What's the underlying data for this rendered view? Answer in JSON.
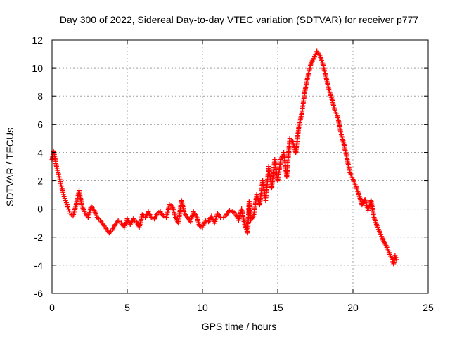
{
  "chart_data": {
    "type": "scatter",
    "title": "Day 300 of 2022, Sidereal Day-to-day VTEC variation (SDTVAR) for receiver p777",
    "xlabel": "GPS time / hours",
    "ylabel": "SDTVAR / TECUs",
    "xlim": [
      0,
      25
    ],
    "ylim": [
      -6,
      12
    ],
    "xticks": [
      0,
      5,
      10,
      15,
      20,
      25
    ],
    "yticks": [
      -6,
      -4,
      -2,
      0,
      2,
      4,
      6,
      8,
      10,
      12
    ],
    "x_tick_labels": [
      "0",
      "5",
      "10",
      "15",
      "20",
      "25"
    ],
    "y_tick_labels": [
      "-6",
      "-4",
      "-2",
      "0",
      "2",
      "4",
      "6",
      "8",
      "10",
      "12"
    ],
    "grid": true,
    "marker": "+",
    "color": "#ff0000",
    "series": [
      {
        "name": "SDTVAR p777",
        "points": [
          [
            0.0,
            3.5
          ],
          [
            0.1,
            4.1
          ],
          [
            0.2,
            3.6
          ],
          [
            0.3,
            3.0
          ],
          [
            0.4,
            2.6
          ],
          [
            0.5,
            2.2
          ],
          [
            0.6,
            1.7
          ],
          [
            0.7,
            1.3
          ],
          [
            0.8,
            0.9
          ],
          [
            0.9,
            0.6
          ],
          [
            1.0,
            0.3
          ],
          [
            1.1,
            0.0
          ],
          [
            1.2,
            -0.3
          ],
          [
            1.4,
            -0.5
          ],
          [
            1.6,
            0.3
          ],
          [
            1.8,
            1.3
          ],
          [
            2.0,
            0.2
          ],
          [
            2.2,
            -0.3
          ],
          [
            2.4,
            -0.6
          ],
          [
            2.6,
            0.2
          ],
          [
            2.8,
            -0.1
          ],
          [
            3.0,
            -0.6
          ],
          [
            3.2,
            -0.8
          ],
          [
            3.4,
            -1.1
          ],
          [
            3.6,
            -1.4
          ],
          [
            3.8,
            -1.7
          ],
          [
            4.0,
            -1.5
          ],
          [
            4.2,
            -1.1
          ],
          [
            4.4,
            -0.8
          ],
          [
            4.6,
            -1.0
          ],
          [
            4.8,
            -1.3
          ],
          [
            5.0,
            -0.7
          ],
          [
            5.2,
            -1.1
          ],
          [
            5.4,
            -0.7
          ],
          [
            5.6,
            -0.9
          ],
          [
            5.8,
            -1.3
          ],
          [
            6.0,
            -0.4
          ],
          [
            6.2,
            -0.6
          ],
          [
            6.4,
            -0.2
          ],
          [
            6.6,
            -0.6
          ],
          [
            6.8,
            -0.7
          ],
          [
            7.0,
            -0.3
          ],
          [
            7.2,
            -0.2
          ],
          [
            7.4,
            -0.5
          ],
          [
            7.6,
            -0.6
          ],
          [
            7.8,
            0.3
          ],
          [
            8.0,
            0.2
          ],
          [
            8.2,
            -0.6
          ],
          [
            8.4,
            -1.0
          ],
          [
            8.6,
            0.6
          ],
          [
            8.8,
            -0.3
          ],
          [
            9.0,
            -0.6
          ],
          [
            9.2,
            -0.9
          ],
          [
            9.4,
            -0.2
          ],
          [
            9.6,
            -0.5
          ],
          [
            9.8,
            -1.2
          ],
          [
            10.0,
            -1.3
          ],
          [
            10.2,
            -0.8
          ],
          [
            10.4,
            -0.9
          ],
          [
            10.6,
            -0.5
          ],
          [
            10.8,
            -1.0
          ],
          [
            11.0,
            -0.3
          ],
          [
            11.2,
            -0.6
          ],
          [
            11.4,
            -0.6
          ],
          [
            11.6,
            -0.4
          ],
          [
            11.8,
            -0.1
          ],
          [
            12.0,
            -0.2
          ],
          [
            12.2,
            -0.3
          ],
          [
            12.4,
            -0.8
          ],
          [
            12.6,
            0.0
          ],
          [
            12.8,
            -1.1
          ],
          [
            13.0,
            -1.7
          ],
          [
            13.1,
            0.5
          ],
          [
            13.2,
            -0.8
          ],
          [
            13.4,
            -0.5
          ],
          [
            13.6,
            1.0
          ],
          [
            13.8,
            0.3
          ],
          [
            14.0,
            2.0
          ],
          [
            14.2,
            0.6
          ],
          [
            14.4,
            3.0
          ],
          [
            14.6,
            1.5
          ],
          [
            14.8,
            3.5
          ],
          [
            15.0,
            2.0
          ],
          [
            15.2,
            3.5
          ],
          [
            15.4,
            4.0
          ],
          [
            15.6,
            2.3
          ],
          [
            15.8,
            5.0
          ],
          [
            16.0,
            4.8
          ],
          [
            16.2,
            4.0
          ],
          [
            16.4,
            5.8
          ],
          [
            16.6,
            6.8
          ],
          [
            16.8,
            8.3
          ],
          [
            17.0,
            9.4
          ],
          [
            17.2,
            10.3
          ],
          [
            17.4,
            10.7
          ],
          [
            17.6,
            11.2
          ],
          [
            17.8,
            10.9
          ],
          [
            18.0,
            10.3
          ],
          [
            18.2,
            9.4
          ],
          [
            18.4,
            8.5
          ],
          [
            18.6,
            7.8
          ],
          [
            18.8,
            7.0
          ],
          [
            19.0,
            6.5
          ],
          [
            19.2,
            5.4
          ],
          [
            19.4,
            4.6
          ],
          [
            19.6,
            3.6
          ],
          [
            19.8,
            2.6
          ],
          [
            20.0,
            2.1
          ],
          [
            20.2,
            1.6
          ],
          [
            20.4,
            1.0
          ],
          [
            20.6,
            0.3
          ],
          [
            20.8,
            0.7
          ],
          [
            21.0,
            -0.1
          ],
          [
            21.2,
            0.6
          ],
          [
            21.4,
            -0.6
          ],
          [
            21.6,
            -1.2
          ],
          [
            21.8,
            -1.7
          ],
          [
            22.0,
            -2.2
          ],
          [
            22.2,
            -2.6
          ],
          [
            22.4,
            -3.1
          ],
          [
            22.6,
            -3.6
          ],
          [
            22.7,
            -3.9
          ],
          [
            22.8,
            -3.3
          ],
          [
            22.9,
            -3.6
          ]
        ]
      }
    ]
  }
}
